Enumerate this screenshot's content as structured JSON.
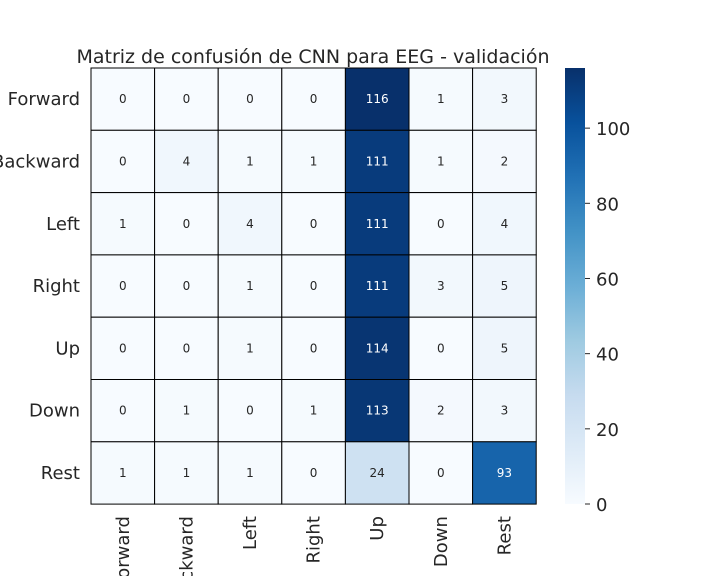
{
  "chart_data": {
    "type": "heatmap",
    "title": "Matriz de confusión de CNN para EEG - validación",
    "row_labels": [
      "Forward",
      "Backward",
      "Left",
      "Right",
      "Up",
      "Down",
      "Rest"
    ],
    "col_labels": [
      "Forward",
      "Backward",
      "Left",
      "Right",
      "Up",
      "Down",
      "Rest"
    ],
    "values": [
      [
        0,
        0,
        0,
        0,
        116,
        1,
        3
      ],
      [
        0,
        4,
        1,
        1,
        111,
        1,
        2
      ],
      [
        1,
        0,
        4,
        0,
        111,
        0,
        4
      ],
      [
        0,
        0,
        1,
        0,
        111,
        3,
        5
      ],
      [
        0,
        0,
        1,
        0,
        114,
        0,
        5
      ],
      [
        0,
        1,
        0,
        1,
        113,
        2,
        3
      ],
      [
        1,
        1,
        1,
        0,
        24,
        0,
        93
      ]
    ],
    "colorbar": {
      "vmin": 0,
      "vmax": 116,
      "ticks": [
        0,
        20,
        40,
        60,
        80,
        100
      ],
      "colormap": "Blues"
    },
    "colors": {
      "low": "#f7fbff",
      "high": "#08306b",
      "grid_line": "#000000"
    }
  }
}
